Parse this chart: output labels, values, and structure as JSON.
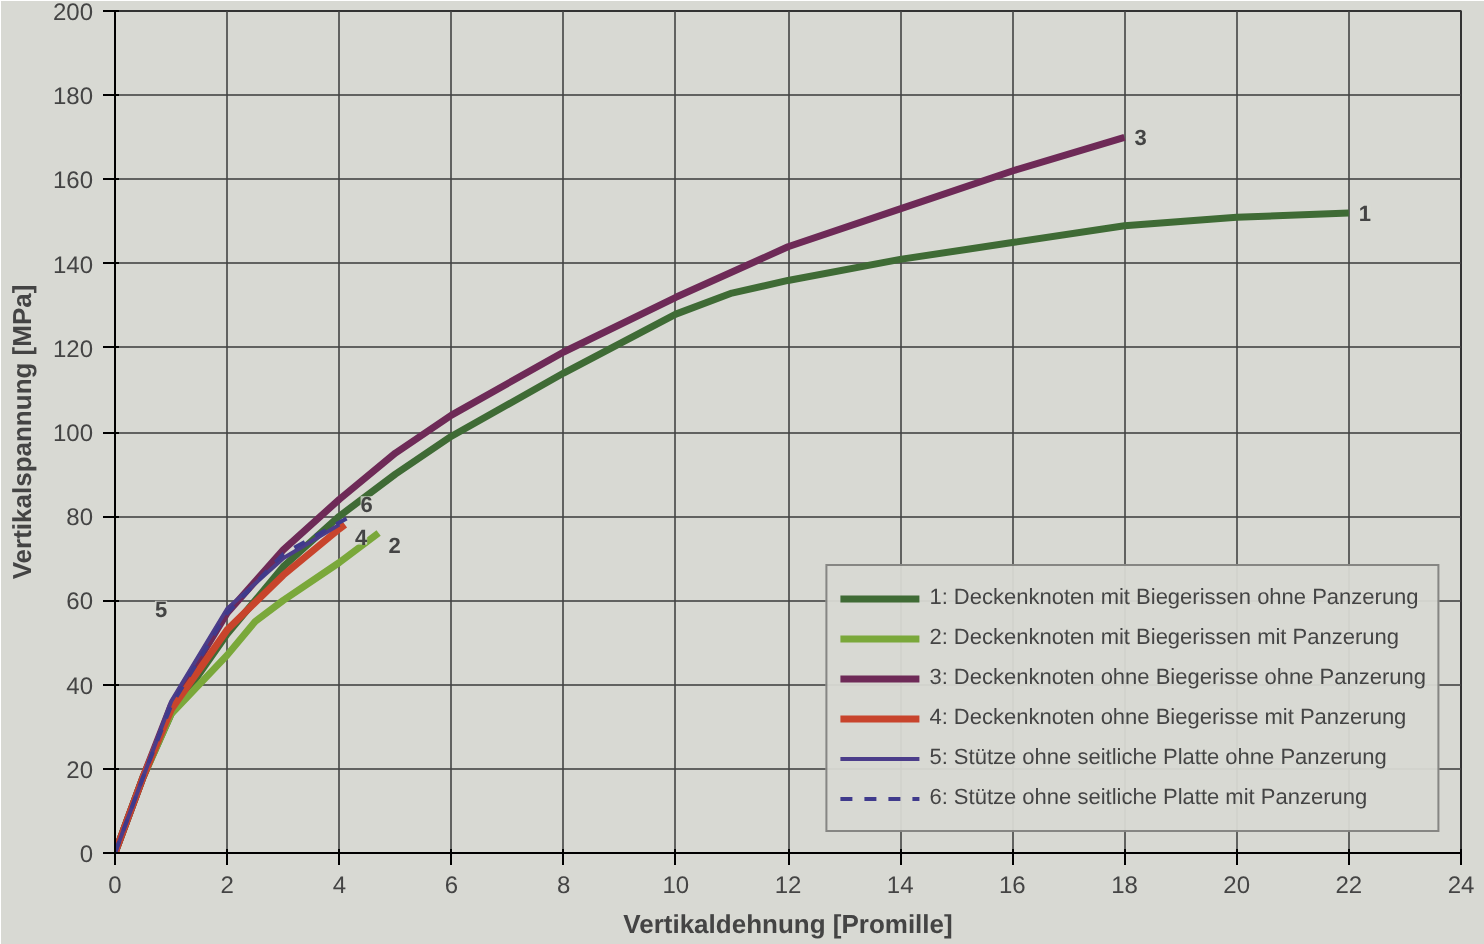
{
  "chart_data": {
    "type": "line",
    "xlabel": "Vertikaldehnung [Promille]",
    "ylabel": "Vertikalspannung [MPa]",
    "xlim": [
      0,
      24
    ],
    "ylim": [
      0,
      200
    ],
    "xticks": [
      0,
      2,
      4,
      6,
      8,
      10,
      12,
      14,
      16,
      18,
      20,
      22,
      24
    ],
    "yticks": [
      0,
      20,
      40,
      60,
      80,
      100,
      120,
      140,
      160,
      180,
      200
    ],
    "grid": true,
    "legend": "bottom right",
    "line_style": "solid",
    "marker": "none",
    "series": [
      {
        "name": "1: Deckenknoten mit Biegerissen ohne Panzerung",
        "color": "#3f6b35",
        "x": [
          0,
          0.5,
          1,
          2,
          3,
          4,
          5,
          6,
          8,
          10,
          11,
          12,
          14,
          16,
          18,
          20,
          22
        ],
        "values": [
          0,
          18,
          33,
          52,
          68,
          80,
          90,
          99,
          114,
          128,
          133,
          136,
          141,
          145,
          149,
          151,
          152
        ]
      },
      {
        "name": "2: Deckenknoten mit Biegerissen mit Panzerung",
        "color": "#7aa83a",
        "x": [
          0,
          0.5,
          1,
          1.5,
          2,
          2.5,
          3,
          4,
          4.7
        ],
        "values": [
          0,
          18,
          33,
          40,
          47,
          55,
          60,
          69,
          76
        ]
      },
      {
        "name": "3: Deckenknoten ohne Biegerisse ohne Panzerung",
        "color": "#6e2a57",
        "x": [
          0,
          0.5,
          1,
          2,
          3,
          4,
          5,
          6,
          8,
          10,
          12,
          14,
          16,
          18
        ],
        "values": [
          0,
          18,
          35,
          57,
          72,
          84,
          95,
          104,
          119,
          132,
          144,
          153,
          162,
          170
        ]
      },
      {
        "name": "4: Deckenknoten ohne Biegerisse mit Panzerung",
        "color": "#c8442c",
        "x": [
          0,
          0.5,
          1,
          2,
          3,
          4,
          4.1
        ],
        "values": [
          0,
          18,
          34,
          53,
          66,
          77,
          78
        ]
      },
      {
        "name": "5: Stütze ohne seitliche Platte ohne Panzerung",
        "color": "#4b3d8a",
        "x": [
          0,
          0.5,
          1,
          2,
          3,
          4
        ],
        "values": [
          0,
          18,
          36,
          58,
          70,
          78
        ]
      },
      {
        "name": "6: Stütze ohne seitliche Platte mit Panzerung",
        "color": "#3f3a8c",
        "line_style": "dashed",
        "x": [
          0,
          0.5,
          1,
          2,
          3,
          4.2
        ],
        "values": [
          0,
          18,
          35,
          57,
          71,
          80
        ]
      }
    ],
    "annotations": [
      {
        "text": "1",
        "x": 22,
        "y": 152
      },
      {
        "text": "2",
        "x": 4.7,
        "y": 76
      },
      {
        "text": "3",
        "x": 18,
        "y": 170
      },
      {
        "text": "4",
        "x": 4.1,
        "y": 78
      },
      {
        "text": "5",
        "x": 2,
        "y": 58
      },
      {
        "text": "6",
        "x": 4.2,
        "y": 80
      }
    ]
  }
}
